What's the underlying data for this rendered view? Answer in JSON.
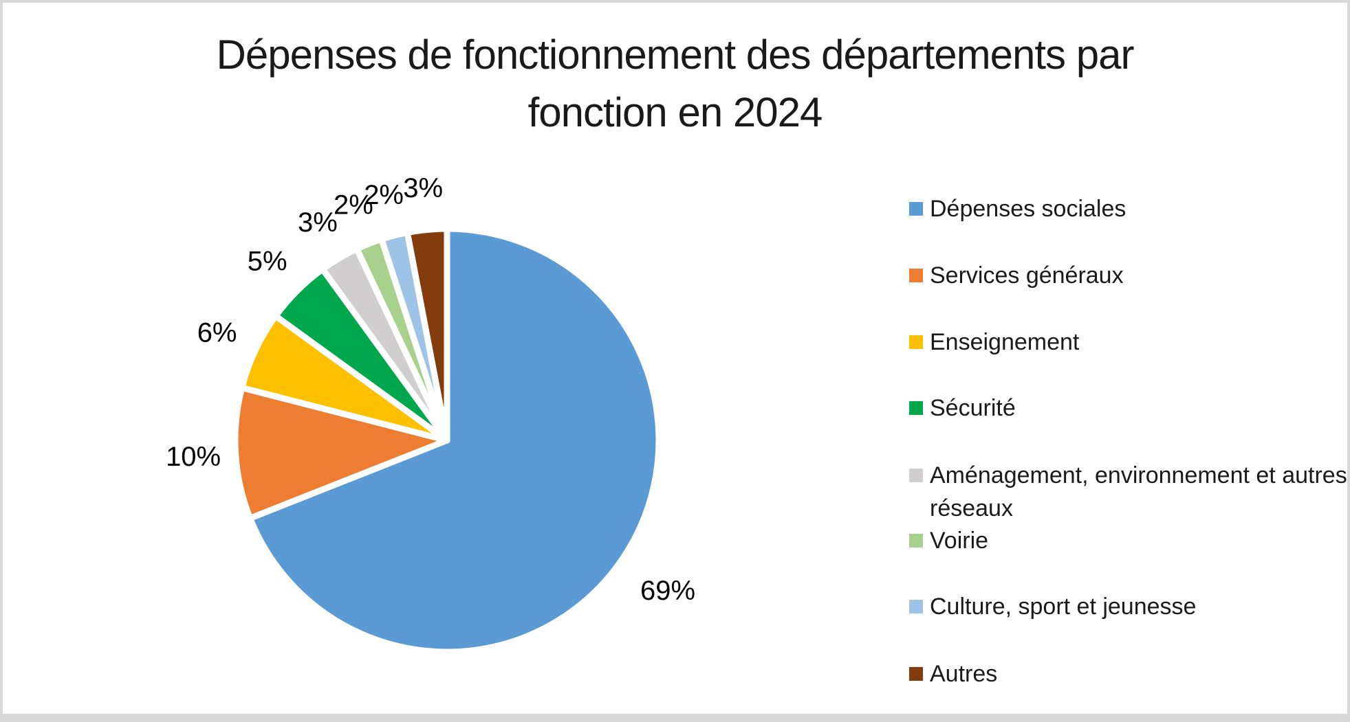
{
  "page": {
    "background_color": "#ffffff",
    "border_color": "#d9d9d9"
  },
  "chart_data": {
    "type": "pie",
    "title": "Dépenses de fonctionnement des départements par fonction en 2024",
    "title_lines": [
      "Dépenses de fonctionnement des départements par",
      "fonction en 2024"
    ],
    "unit": "%",
    "start_angle_deg": 0,
    "direction": "clockwise",
    "legend_position": "right",
    "data_labels": "outside-end",
    "slices": [
      {
        "label": "Dépenses sociales",
        "value": 69,
        "data_label": "69%",
        "color": "#5B9BD5"
      },
      {
        "label": "Services généraux",
        "value": 10,
        "data_label": "10%",
        "color": "#ED7D31"
      },
      {
        "label": "Enseignement",
        "value": 6,
        "data_label": "6%",
        "color": "#FFC000"
      },
      {
        "label": "Sécurité",
        "value": 5,
        "data_label": "5%",
        "color": "#00A84D"
      },
      {
        "label": "Aménagement, environnement et autres réseaux",
        "value": 3,
        "data_label": "3%",
        "color": "#D0CECE"
      },
      {
        "label": "Voirie",
        "value": 2,
        "data_label": "2%",
        "color": "#A9D18E"
      },
      {
        "label": "Culture, sport et jeunesse",
        "value": 2,
        "data_label": "2%",
        "color": "#9DC3E6"
      },
      {
        "label": "Autres",
        "value": 3,
        "data_label": "3%",
        "color": "#843C0C"
      }
    ]
  }
}
